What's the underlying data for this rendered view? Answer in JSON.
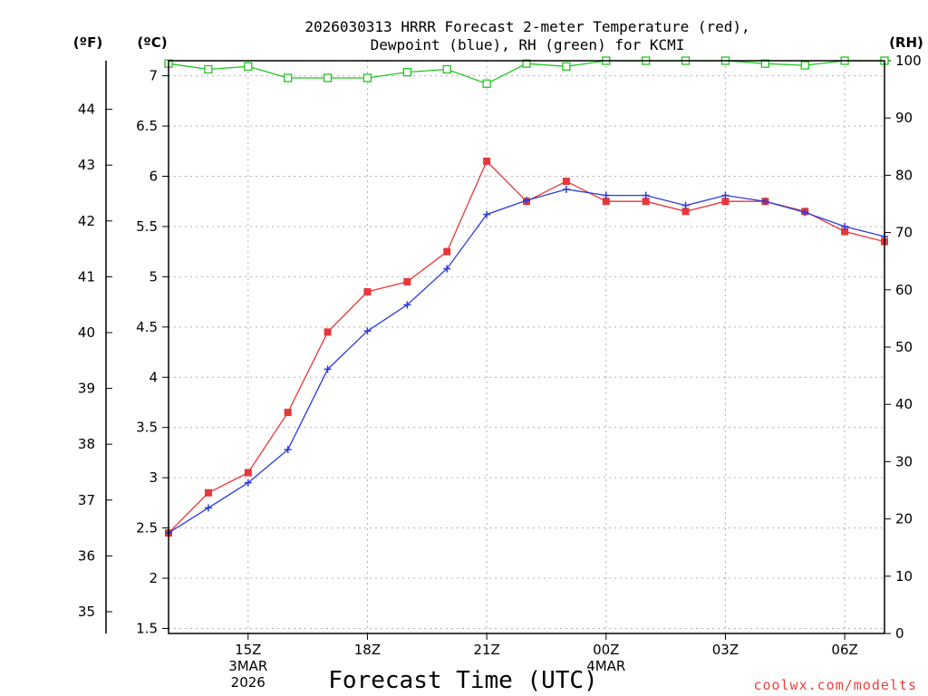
{
  "chart_data": {
    "type": "line",
    "title_lines": [
      "2026030313 HRRR Forecast 2-meter Temperature (red),",
      "Dewpoint (blue), RH (green) for KCMI"
    ],
    "xlabel": "Forecast Time (UTC)",
    "credit": "coolwx.com/modelts",
    "unit_labels": {
      "f": "(ºF)",
      "c": "(ºC)",
      "rh": "(RH)"
    },
    "x_hours": [
      13,
      14,
      15,
      16,
      17,
      18,
      19,
      20,
      21,
      22,
      23,
      24,
      25,
      26,
      27,
      28,
      29,
      30,
      31
    ],
    "xlim": [
      13,
      31
    ],
    "x_ticks": [
      {
        "hour": 15,
        "lines": [
          "15Z",
          "3MAR",
          "2026"
        ]
      },
      {
        "hour": 18,
        "lines": [
          "18Z"
        ]
      },
      {
        "hour": 21,
        "lines": [
          "21Z"
        ]
      },
      {
        "hour": 24,
        "lines": [
          "00Z",
          "4MAR"
        ]
      },
      {
        "hour": 27,
        "lines": [
          "03Z"
        ]
      },
      {
        "hour": 30,
        "lines": [
          "06Z"
        ]
      }
    ],
    "celsius_axis": {
      "ylim": [
        1.45,
        7.15
      ],
      "ticks": [
        "1.5",
        "2",
        "2.5",
        "3",
        "3.5",
        "4",
        "4.5",
        "5",
        "5.5",
        "6",
        "6.5",
        "7"
      ]
    },
    "fahrenheit_axis": {
      "ticks": [
        "35",
        "36",
        "37",
        "38",
        "39",
        "40",
        "41",
        "42",
        "43",
        "44"
      ]
    },
    "rh_axis": {
      "ylim": [
        0,
        100
      ],
      "ticks": [
        "0",
        "10",
        "20",
        "30",
        "40",
        "50",
        "60",
        "70",
        "80",
        "90",
        "100"
      ]
    },
    "series": [
      {
        "name": "Temperature",
        "axis": "celsius",
        "color": "#e8363a",
        "marker": "filled-square",
        "values": [
          2.45,
          2.85,
          3.05,
          3.65,
          4.45,
          4.85,
          4.95,
          5.25,
          6.15,
          5.75,
          5.95,
          5.75,
          5.75,
          5.65,
          5.75,
          5.75,
          5.65,
          5.45,
          5.35
        ]
      },
      {
        "name": "Dewpoint",
        "axis": "celsius",
        "color": "#2b3be0",
        "marker": "plus",
        "values": [
          2.45,
          2.7,
          2.95,
          3.28,
          4.08,
          4.46,
          4.72,
          5.08,
          5.62,
          5.76,
          5.87,
          5.81,
          5.81,
          5.71,
          5.81,
          5.75,
          5.64,
          5.5,
          5.4
        ]
      },
      {
        "name": "RH",
        "axis": "rh",
        "color": "#22c422",
        "marker": "open-square",
        "values": [
          99.5,
          98.5,
          99,
          97,
          97,
          97,
          98,
          98.5,
          96,
          99.5,
          99,
          100,
          100,
          100,
          100,
          99.5,
          99.2,
          100,
          100
        ]
      }
    ]
  }
}
